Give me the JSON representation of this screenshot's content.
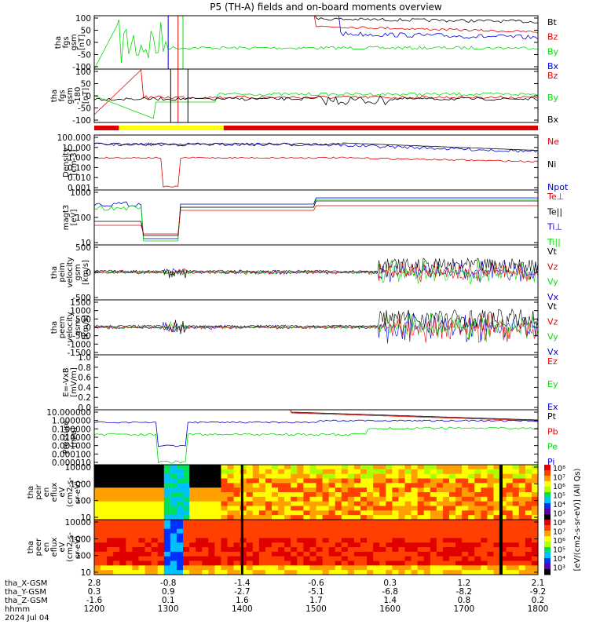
{
  "chart_data": {
    "type": "line",
    "title": "P5 (TH-A) fields and on-board moments overview",
    "colors": {
      "black": "#000000",
      "red": "#e00000",
      "green": "#00dd00",
      "blue": "#0000dd",
      "yellow": "#ffff00"
    },
    "panels": [
      {
        "id": "fgs",
        "ylabel": [
          "tha",
          "fgs",
          "gsm",
          "[nT]"
        ],
        "yticks": [
          "100",
          "50",
          "0",
          "-50",
          "-100"
        ],
        "ylim": [
          -100,
          100
        ],
        "legend": [
          {
            "label": "Bt",
            "color": "black"
          },
          {
            "label": "Bz",
            "color": "red"
          },
          {
            "label": "By",
            "color": "green"
          },
          {
            "label": "Bx",
            "color": "blue"
          }
        ]
      },
      {
        "id": "fgs-dsl",
        "ylabel": [
          "tha",
          "fgs",
          "gsm",
          "-180",
          "[nT]"
        ],
        "yticks": [
          "100",
          "50",
          "0",
          "-50",
          "-100"
        ],
        "ylim": [
          -120,
          110
        ],
        "legend": [
          {
            "label": "Bz",
            "color": "red"
          },
          {
            "label": "By",
            "color": "green"
          },
          {
            "label": "Bx",
            "color": "black"
          }
        ]
      },
      {
        "id": "density",
        "ylabel": [
          "Density",
          "[cm-3]"
        ],
        "yticks": [
          "100.000",
          "10.000",
          "1.000",
          "0.100",
          "0.010",
          "0.001"
        ],
        "ylim": [
          0.0005,
          200
        ],
        "scale": "log",
        "legend": [
          {
            "label": "Ne",
            "color": "red"
          },
          {
            "label": "Ni",
            "color": "black"
          },
          {
            "label": "Npot",
            "color": "blue"
          }
        ]
      },
      {
        "id": "temperature",
        "ylabel": [
          "magt3",
          "[eV]"
        ],
        "yticks": [
          "1000",
          "100",
          "10"
        ],
        "ylim": [
          10,
          5000
        ],
        "scale": "log",
        "legend": [
          {
            "label": "Te⊥",
            "color": "red"
          },
          {
            "label": "Te||",
            "color": "black"
          },
          {
            "label": "Ti⊥",
            "color": "blue"
          },
          {
            "label": "Ti||",
            "color": "green"
          }
        ]
      },
      {
        "id": "peim-velocity",
        "ylabel": [
          "tha",
          "peim",
          "velocity",
          "gsm",
          "[km/s]"
        ],
        "yticks": [
          "500",
          "0",
          "-500"
        ],
        "ylim": [
          -750,
          750
        ],
        "legend": [
          {
            "label": "Vt",
            "color": "black"
          },
          {
            "label": "Vz",
            "color": "red"
          },
          {
            "label": "Vy",
            "color": "green"
          },
          {
            "label": "Vx",
            "color": "blue"
          }
        ]
      },
      {
        "id": "peem-velocity",
        "ylabel": [
          "tha",
          "peem",
          "velocity",
          "gsm",
          "[km/s]"
        ],
        "yticks": [
          "1500",
          "1000",
          "500",
          "0",
          "-500",
          "-1000",
          "-1500"
        ],
        "ylim": [
          -1500,
          1500
        ],
        "legend": [
          {
            "label": "Vt",
            "color": "black"
          },
          {
            "label": "Vz",
            "color": "red"
          },
          {
            "label": "Vy",
            "color": "green"
          },
          {
            "label": "Vx",
            "color": "blue"
          }
        ]
      },
      {
        "id": "efield",
        "ylabel": [
          "E=-VxB",
          "[mV/m]"
        ],
        "yticks": [
          "1.0",
          "0.8",
          "0.6",
          "0.4",
          "0.2",
          "0.0"
        ],
        "ylim": [
          0,
          1
        ],
        "legend": [
          {
            "label": "Ez",
            "color": "red"
          },
          {
            "label": "Ey",
            "color": "green"
          },
          {
            "label": "Ex",
            "color": "blue"
          }
        ]
      },
      {
        "id": "pressure",
        "ylabel": [
          "Pressure",
          "[nPa]"
        ],
        "yticks": [
          "10.000000",
          "1.000000",
          "0.100000",
          "0.010000",
          "0.001000",
          "0.000100",
          "0.000010"
        ],
        "ylim": [
          1e-05,
          10
        ],
        "scale": "log",
        "legend": [
          {
            "label": "Pt",
            "color": "black"
          },
          {
            "label": "Pb",
            "color": "red"
          },
          {
            "label": "Pe",
            "color": "green"
          },
          {
            "label": "Pi",
            "color": "blue"
          }
        ]
      },
      {
        "id": "peir-spec",
        "ylabel": [
          "tha",
          "peir",
          "en",
          "eflux",
          "eV",
          "(cm2-s-",
          "sr-eV)"
        ],
        "yticks": [
          "10000",
          "1000",
          "100",
          "10"
        ],
        "type": "heatmap"
      },
      {
        "id": "peer-spec",
        "ylabel": [
          "tha",
          "peer",
          "en",
          "eflux",
          "eV",
          "(cm2-s-",
          "sr-eV)"
        ],
        "yticks": [
          "10000",
          "1000",
          "100",
          "10"
        ],
        "type": "heatmap"
      }
    ],
    "colorbar": {
      "ticks": [
        "10⁸",
        "10⁷",
        "10⁶",
        "10⁵",
        "10⁴",
        "10³",
        "10⁸",
        "10⁷",
        "10⁶",
        "10⁵",
        "10⁴",
        "10³"
      ],
      "label": "[eV/(cm2-s-sr-eV)] (All Qs)"
    },
    "xaxis": {
      "rows": [
        {
          "label": "tha_X-GSM",
          "values": [
            "2.8",
            "-0.8",
            "-1.4",
            "-0.6",
            "0.3",
            "1.2",
            "2.1"
          ]
        },
        {
          "label": "tha_Y-GSM",
          "values": [
            "0.3",
            "0.9",
            "-2.7",
            "-5.1",
            "-6.8",
            "-8.2",
            "-9.2"
          ]
        },
        {
          "label": "tha_Z-GSM",
          "values": [
            "-1.6",
            "0.1",
            "1.6",
            "1.7",
            "1.4",
            "0.8",
            "0.2"
          ]
        },
        {
          "label": "hhmm",
          "values": [
            "1200",
            "1300",
            "1400",
            "1500",
            "1600",
            "1700",
            "1800"
          ]
        }
      ],
      "date": "2024 Jul 04",
      "time_range": [
        1200,
        1800
      ]
    },
    "mode_bar": [
      {
        "from": 1200,
        "to": 1220,
        "color": "red"
      },
      {
        "from": 1220,
        "to": 1345,
        "color": "yellow"
      },
      {
        "from": 1345,
        "to": 1800,
        "color": "red"
      }
    ]
  }
}
